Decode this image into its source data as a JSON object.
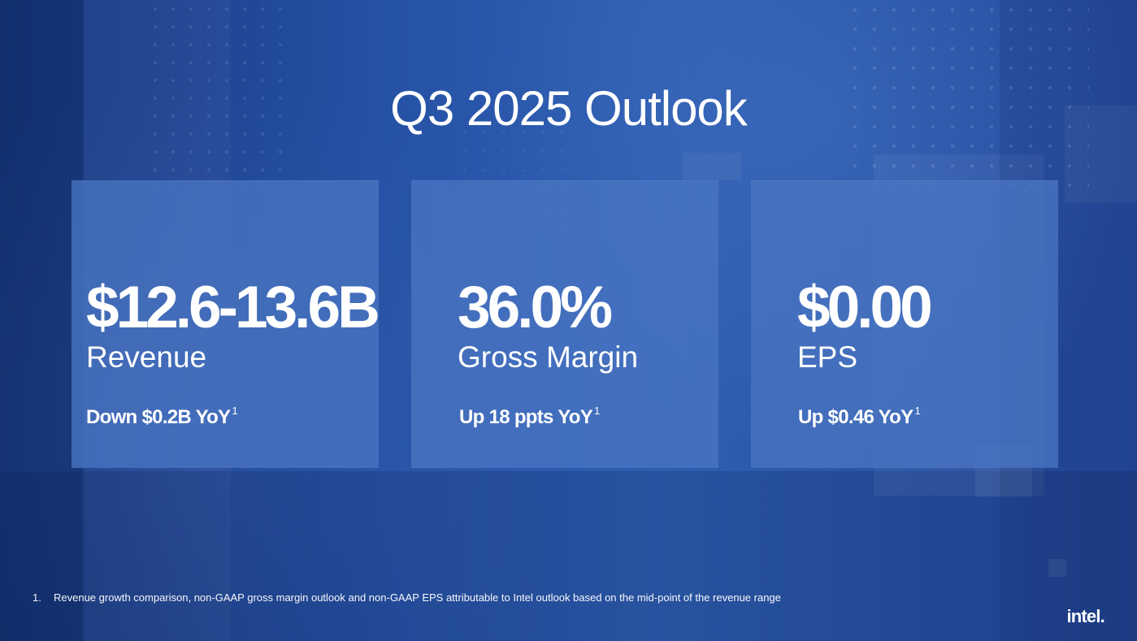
{
  "slide": {
    "title": "Q3 2025 Outlook"
  },
  "cards": [
    {
      "value": "$12.6-13.6B",
      "label": "Revenue",
      "delta": "Down $0.2B YoY",
      "footnote_ref": "1"
    },
    {
      "value": "36.0%",
      "label": "Gross Margin",
      "delta": "Up 18 ppts YoY",
      "footnote_ref": "1"
    },
    {
      "value": "$0.00",
      "label": "EPS",
      "delta": "Up $0.46 YoY",
      "footnote_ref": "1"
    }
  ],
  "footnote": {
    "number": "1.",
    "text": "Revenue growth comparison, non-GAAP gross margin outlook and non-GAAP EPS attributable to Intel outlook based on the mid-point of the revenue range"
  },
  "brand": {
    "logo_text": "intel."
  },
  "colors": {
    "background": "#1f4799",
    "card": "#4974c1",
    "text": "#ffffff"
  }
}
